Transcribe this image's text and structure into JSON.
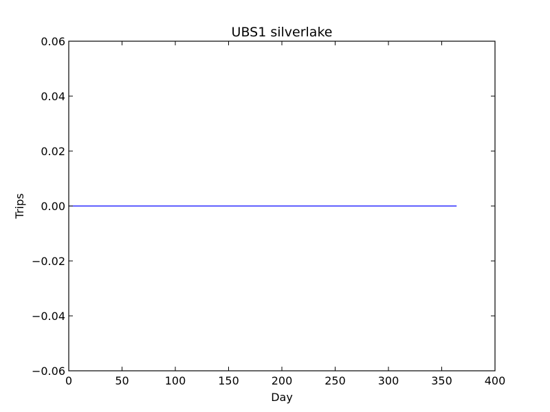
{
  "chart_data": {
    "type": "line",
    "title": "UBS1 silverlake",
    "xlabel": "Day",
    "ylabel": "Trips",
    "xlim": [
      0,
      400
    ],
    "ylim": [
      -0.06,
      0.06
    ],
    "x_ticks": [
      0,
      50,
      100,
      150,
      200,
      250,
      300,
      350,
      400
    ],
    "y_ticks": [
      -0.06,
      -0.04,
      -0.02,
      0.0,
      0.02,
      0.04,
      0.06
    ],
    "x_tick_labels": [
      "0",
      "50",
      "100",
      "150",
      "200",
      "250",
      "300",
      "350",
      "400"
    ],
    "y_tick_labels": [
      "−0.06",
      "−0.04",
      "−0.02",
      "0.00",
      "0.02",
      "0.04",
      "0.06"
    ],
    "grid": false,
    "series": [
      {
        "color": "#0000ff",
        "x": [
          0,
          364
        ],
        "y": [
          0,
          0
        ]
      }
    ]
  }
}
